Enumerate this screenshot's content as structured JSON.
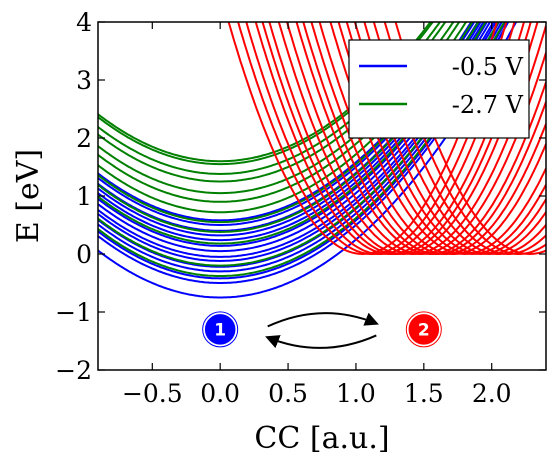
{
  "chart_data": {
    "type": "line",
    "xlabel": "CC [a.u.]",
    "ylabel": "E [eV]",
    "xlim": [
      -0.9,
      2.4
    ],
    "ylim": [
      -2,
      4
    ],
    "x_ticks": [
      -0.5,
      0.0,
      0.5,
      1.0,
      1.5,
      2.0
    ],
    "x_tick_labels": [
      "−0.5",
      "0.0",
      "0.5",
      "1.0",
      "1.5",
      "2.0"
    ],
    "y_ticks": [
      -2,
      -1,
      0,
      1,
      2,
      3,
      4
    ],
    "y_tick_labels": [
      "−2",
      "−1",
      "0",
      "1",
      "2",
      "3",
      "4"
    ],
    "grid": false,
    "legend_position": "top-right",
    "series": [
      {
        "name": "-0.5 V",
        "color": "#0000ff",
        "curve_family": "parabola",
        "center_x": 0.0,
        "curvature": 1.0,
        "minima": [
          -0.75,
          -0.5,
          -0.42,
          -0.3,
          -0.22,
          -0.12,
          -0.05,
          0.05,
          0.14,
          0.24,
          0.32,
          0.4,
          0.5,
          0.58
        ]
      },
      {
        "name": "-2.7 V",
        "color": "#008000",
        "curve_family": "parabola",
        "center_x": 0.0,
        "curvature": 1.0,
        "minima": [
          -0.38,
          -0.2,
          0.18,
          0.38,
          0.55,
          0.72,
          0.9,
          1.05,
          1.25,
          1.38,
          1.55,
          1.6
        ]
      },
      {
        "name": "",
        "color": "#ff0000",
        "curve_family": "parabola",
        "minimum_energy": 0.0,
        "curvature": 4.1,
        "centers": [
          1.05,
          1.12,
          1.18,
          1.25,
          1.3,
          1.35,
          1.42,
          1.48,
          1.55,
          1.6,
          1.66,
          1.72,
          1.8,
          1.86,
          1.92,
          1.98,
          2.05,
          2.12,
          2.2,
          2.28
        ]
      }
    ],
    "annotations": {
      "states": [
        {
          "label": "1",
          "x": 0.0,
          "y": -1.3,
          "color": "#0000ff"
        },
        {
          "label": "2",
          "x": 1.5,
          "y": -1.3,
          "color": "#ff0000"
        }
      ],
      "arrow_cycle": {
        "x_from": 0.35,
        "x_to": 1.15,
        "y_center": -1.3
      }
    }
  }
}
